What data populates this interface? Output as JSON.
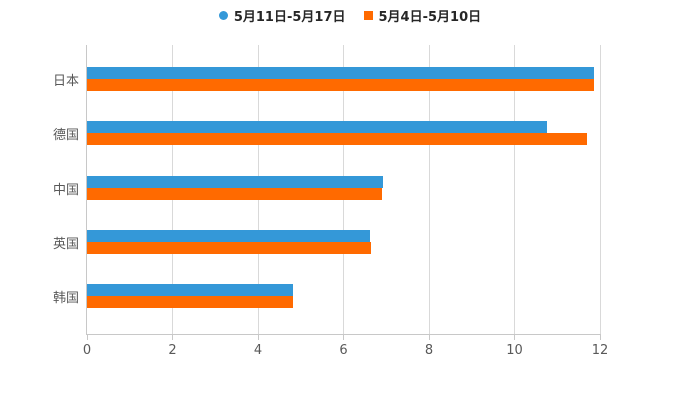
{
  "chart_data": {
    "type": "bar",
    "orientation": "horizontal",
    "title": "",
    "xlabel": "",
    "ylabel": "",
    "categories": [
      "日本",
      "德国",
      "中国",
      "英国",
      "韩国"
    ],
    "series": [
      {
        "name": "5月11日-5月17日",
        "color": "#3498d8",
        "marker": "circle",
        "values": [
          11.87,
          10.76,
          6.93,
          6.61,
          4.83
        ]
      },
      {
        "name": "5月4日-5月10日",
        "color": "#ff6a00",
        "marker": "square",
        "values": [
          11.85,
          11.7,
          6.9,
          6.64,
          4.81
        ]
      }
    ],
    "xlim": [
      0,
      12
    ],
    "x_ticks": [
      0,
      2,
      4,
      6,
      8,
      10,
      12
    ],
    "grid": "vertical-only",
    "legend_position": "top-center"
  },
  "colors": {
    "background": "#ffffff",
    "gridline": "#d9d9d9",
    "axis_line": "#c8c8c8",
    "tick_label": "#595959",
    "category_label": "#595959",
    "legend_text": "#262626",
    "series1": "#3498d8",
    "series2": "#ff6a00"
  }
}
